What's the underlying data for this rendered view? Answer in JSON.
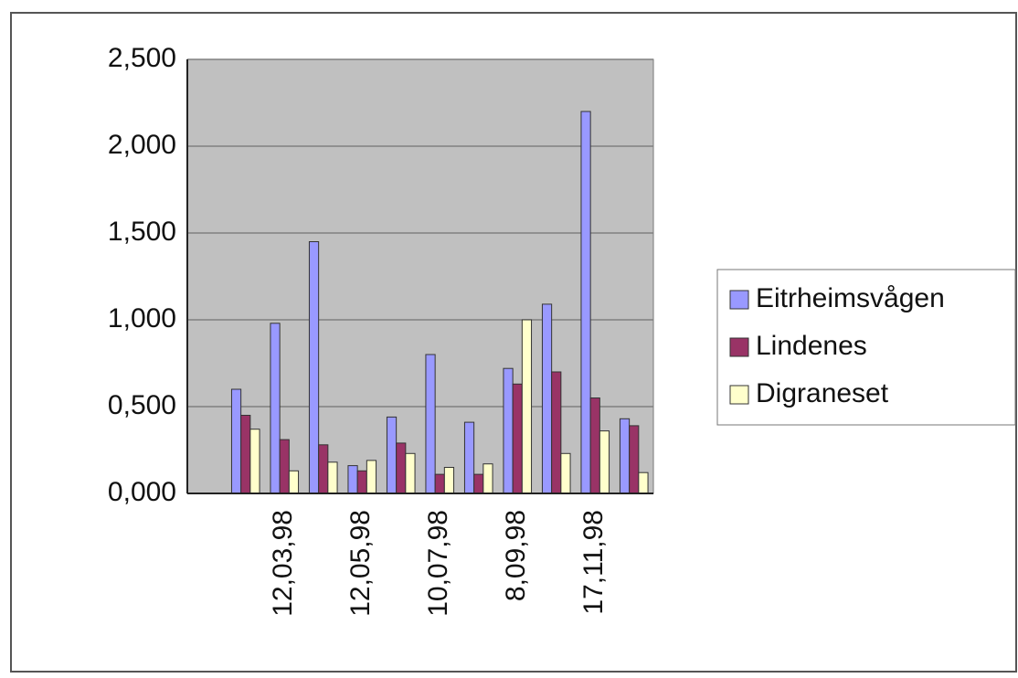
{
  "chart_data": {
    "type": "bar",
    "categories": [
      null,
      null,
      "12,03,98",
      null,
      "12,05,98",
      null,
      "10,07,98",
      null,
      "8,09,98",
      null,
      "17,11,98",
      null
    ],
    "series": [
      {
        "name": "Eitrheimsvågen",
        "color": "#9999ff",
        "values": [
          0,
          600,
          980,
          1450,
          160,
          440,
          800,
          410,
          720,
          1090,
          2200,
          430
        ]
      },
      {
        "name": "Lindenes",
        "color": "#993366",
        "values": [
          0,
          450,
          310,
          280,
          130,
          290,
          110,
          110,
          630,
          700,
          550,
          390
        ]
      },
      {
        "name": "Digraneset",
        "color": "#ffffcc",
        "values": [
          0,
          370,
          130,
          180,
          190,
          230,
          150,
          170,
          1000,
          230,
          360,
          120
        ]
      }
    ],
    "ylim": [
      0,
      2500
    ],
    "yticks": [
      {
        "value": 0,
        "label": "0,000"
      },
      {
        "value": 500,
        "label": "0,500"
      },
      {
        "value": 1000,
        "label": "1,000"
      },
      {
        "value": 1500,
        "label": "1,500"
      },
      {
        "value": 2000,
        "label": "2,000"
      },
      {
        "value": 2500,
        "label": "2,500"
      }
    ],
    "grid": true,
    "legend": "right"
  }
}
